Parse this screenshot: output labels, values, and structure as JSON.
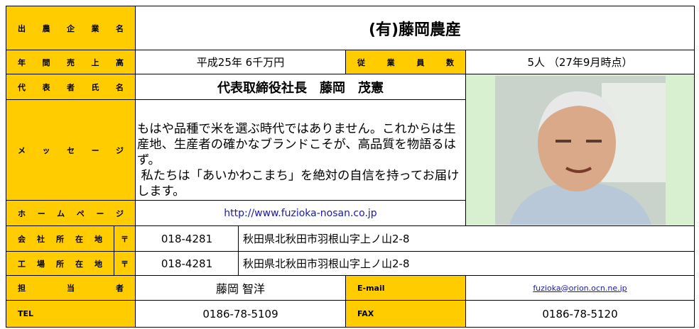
{
  "labels": {
    "company": "出農企業名",
    "sales": "年間売上高",
    "employees": "従業員数",
    "representative": "代表者氏名",
    "message": "メッセージ",
    "homepage": "ホームページ",
    "office_address": "会社所在地",
    "office_postal_mark": "〒",
    "factory_address": "工場所在地",
    "factory_postal_mark": "〒",
    "contact": "担当者",
    "email": "E-mail",
    "tel": "TEL",
    "fax": "FAX"
  },
  "company_name": "(有)藤岡農産",
  "sales": "平成25年 6千万円",
  "employees": "5人 （27年9月時点）",
  "representative": "代表取締役社長　藤岡　茂憲",
  "message": [
    "もはや品種で米を選ぶ時代ではありません。これからは生産地、生産者の確かなブランドこそが、高品質を物語るはず。",
    " 私たちは「あいかわこまち」を絶対の自信を持ってお届けします。"
  ],
  "homepage": "http://www.fuzioka-nosan.co.jp",
  "office": {
    "postal_code": "018-4281",
    "address": "秋田県北秋田市羽根山字上ノ山2-8"
  },
  "factory": {
    "postal_code": "018-4281",
    "address": "秋田県北秋田市羽根山字上ノ山2-8"
  },
  "contact": "藤岡 智洋",
  "email": "fuzioka@orion.ocn.ne.jp",
  "tel": "0186-78-5109",
  "fax": "0186-78-5120"
}
